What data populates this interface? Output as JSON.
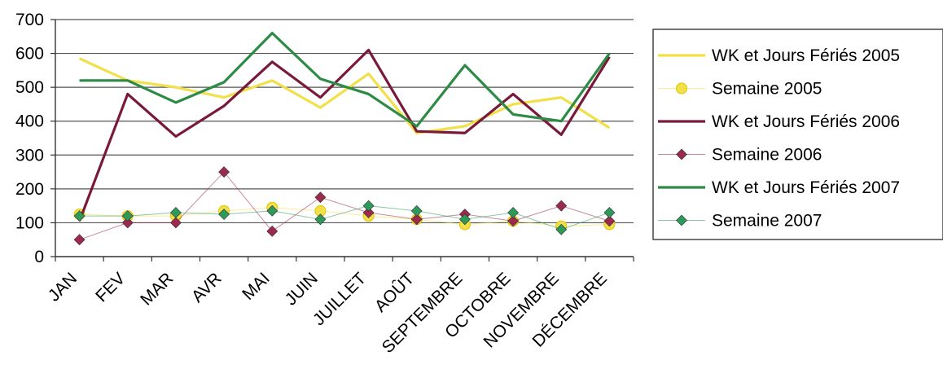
{
  "chart_data": {
    "type": "line",
    "title": "",
    "xlabel": "",
    "ylabel": "",
    "ylim": [
      0,
      700
    ],
    "yticks": [
      "0",
      "100",
      "200",
      "300",
      "400",
      "500",
      "600",
      "700"
    ],
    "categories": [
      "JAN",
      "FEV",
      "MAR",
      "AVR",
      "MAI",
      "JUIN",
      "JUILLET",
      "AOÛT",
      "SEPTEMBRE",
      "OCTOBRE",
      "NOVEMBRE",
      "DÉCEMBRE"
    ],
    "grid": "horizontal",
    "legend_position": "right",
    "series": [
      {
        "name": "WK et Jours Fériés 2005",
        "color": "#f2e04a",
        "style": "line",
        "values": [
          585,
          520,
          500,
          470,
          520,
          440,
          540,
          365,
          385,
          450,
          470,
          380
        ]
      },
      {
        "name": "Semaine 2005",
        "color": "#f2e04a",
        "style": "marker",
        "marker": "circle",
        "values": [
          125,
          120,
          120,
          135,
          145,
          135,
          120,
          110,
          95,
          105,
          90,
          95
        ]
      },
      {
        "name": "WK et Jours Fériés 2006",
        "color": "#7a1a3a",
        "style": "line",
        "values": [
          105,
          480,
          355,
          445,
          575,
          470,
          610,
          370,
          365,
          480,
          360,
          590
        ]
      },
      {
        "name": "Semaine 2006",
        "color": "#9b2a4e",
        "style": "marker",
        "marker": "diamond",
        "values": [
          50,
          100,
          100,
          250,
          75,
          175,
          130,
          110,
          125,
          105,
          150,
          105
        ]
      },
      {
        "name": "WK et Jours Fériés 2007",
        "color": "#2e8b45",
        "style": "line",
        "values": [
          520,
          520,
          455,
          515,
          660,
          525,
          480,
          385,
          565,
          420,
          400,
          600
        ]
      },
      {
        "name": "Semaine 2007",
        "color": "#2e9a5a",
        "style": "marker",
        "marker": "diamond",
        "values": [
          120,
          120,
          130,
          125,
          135,
          110,
          150,
          135,
          110,
          130,
          80,
          130
        ]
      }
    ]
  }
}
